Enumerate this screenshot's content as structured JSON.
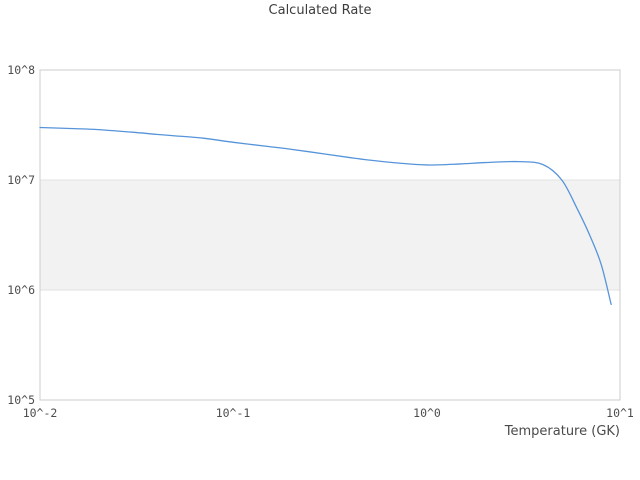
{
  "title": "Calculated Rate",
  "axes": {
    "x_label": "Temperature (GK)",
    "x_ticks": [
      "10^-2",
      "10^-1",
      "10^0",
      "10^1"
    ],
    "y_ticks": [
      "10^8",
      "10^7",
      "10^6",
      "10^5"
    ]
  },
  "colors": {
    "line": "#5694da",
    "band": "#f2f2f2",
    "grid": "#e2e2e2",
    "border": "#cccccc",
    "title_text": "#3d3d3d",
    "tick_text": "#4d4d4d"
  },
  "chart_data": {
    "type": "line",
    "title": "Calculated Rate",
    "xlabel": "Temperature (GK)",
    "ylabel": "",
    "x_scale": "log",
    "y_scale": "log",
    "xlim": [
      0.01,
      10
    ],
    "ylim": [
      100000,
      100000000
    ],
    "grid": "horizontal-decades",
    "legend": "none",
    "shaded_band_y": [
      1000000,
      10000000
    ],
    "series": [
      {
        "name": "Calculated Rate",
        "x": [
          0.01,
          0.015,
          0.02,
          0.03,
          0.04,
          0.05,
          0.07,
          0.1,
          0.15,
          0.2,
          0.3,
          0.4,
          0.5,
          0.7,
          1.0,
          1.5,
          2.0,
          3.0,
          4.0,
          5.0,
          6.0,
          7.0,
          8.0,
          9.0
        ],
        "y": [
          30000000,
          29300000,
          28700000,
          27200000,
          26000000,
          25200000,
          24000000,
          22000000,
          20200000,
          19000000,
          17200000,
          16000000,
          15200000,
          14300000,
          13700000,
          14000000,
          14400000,
          14700000,
          13800000,
          10000000,
          5500000,
          3100000,
          1700000,
          740000
        ]
      }
    ]
  }
}
